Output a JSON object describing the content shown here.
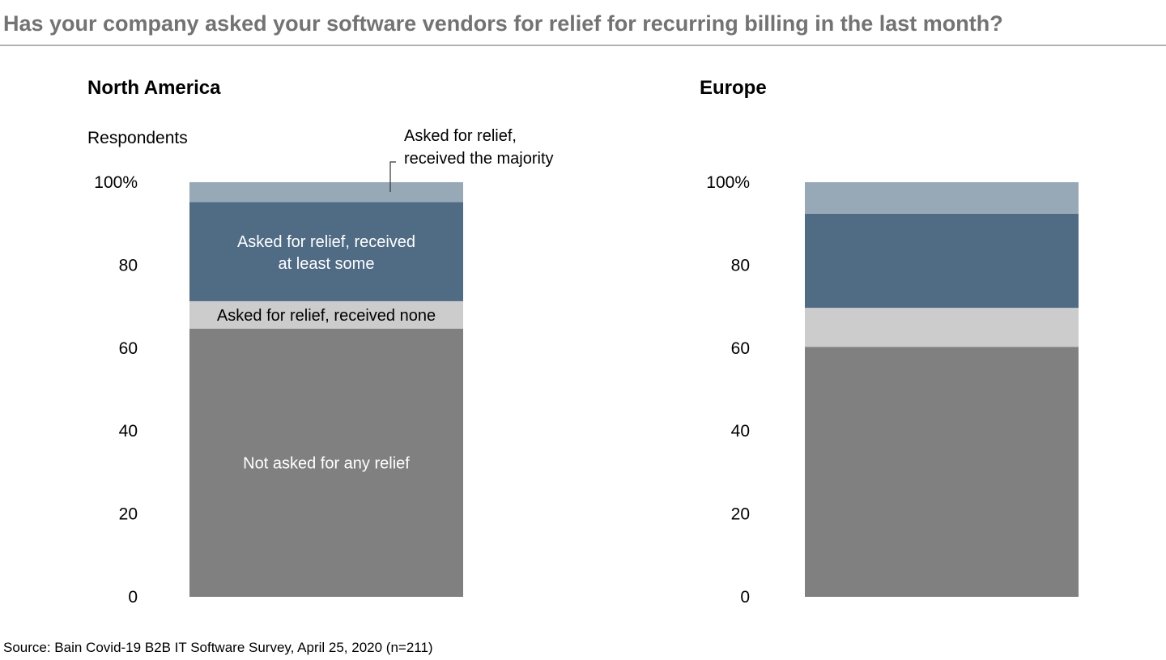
{
  "chart_data": {
    "type": "bar",
    "stacked": true,
    "title": "Has your company asked your software vendors for relief for recurring billing in the last month?",
    "ylabel": "Respondents",
    "ylim": [
      0,
      100
    ],
    "yticks": [
      "0",
      "20",
      "40",
      "60",
      "80",
      "100%"
    ],
    "ytick_values": [
      0,
      20,
      40,
      60,
      80,
      100
    ],
    "source": "Source: Bain Covid-19 B2B IT Software Survey, April 25, 2020 (n=211)",
    "series": [
      {
        "name": "Not asked for any relief",
        "color": "#808080",
        "label_color": "#ffffff"
      },
      {
        "name": "Asked for relief, received none",
        "color": "#cccccc",
        "label_color": "#000000"
      },
      {
        "name": "Asked for relief, received at least some",
        "label_lines": [
          "Asked for relief, received",
          "at least some"
        ],
        "color": "#506c85",
        "label_color": "#ffffff"
      },
      {
        "name": "Asked for relief, received the majority",
        "label_lines": [
          "Asked for relief,",
          "received the majority"
        ],
        "color": "#97a9b7",
        "label_color": "#000000"
      }
    ],
    "panels": [
      {
        "title": "North America",
        "values": [
          64.7,
          6.6,
          23.9,
          4.8
        ],
        "show_labels": true
      },
      {
        "title": "Europe",
        "values": [
          60.3,
          9.4,
          22.7,
          7.6
        ],
        "show_labels": false
      }
    ]
  }
}
